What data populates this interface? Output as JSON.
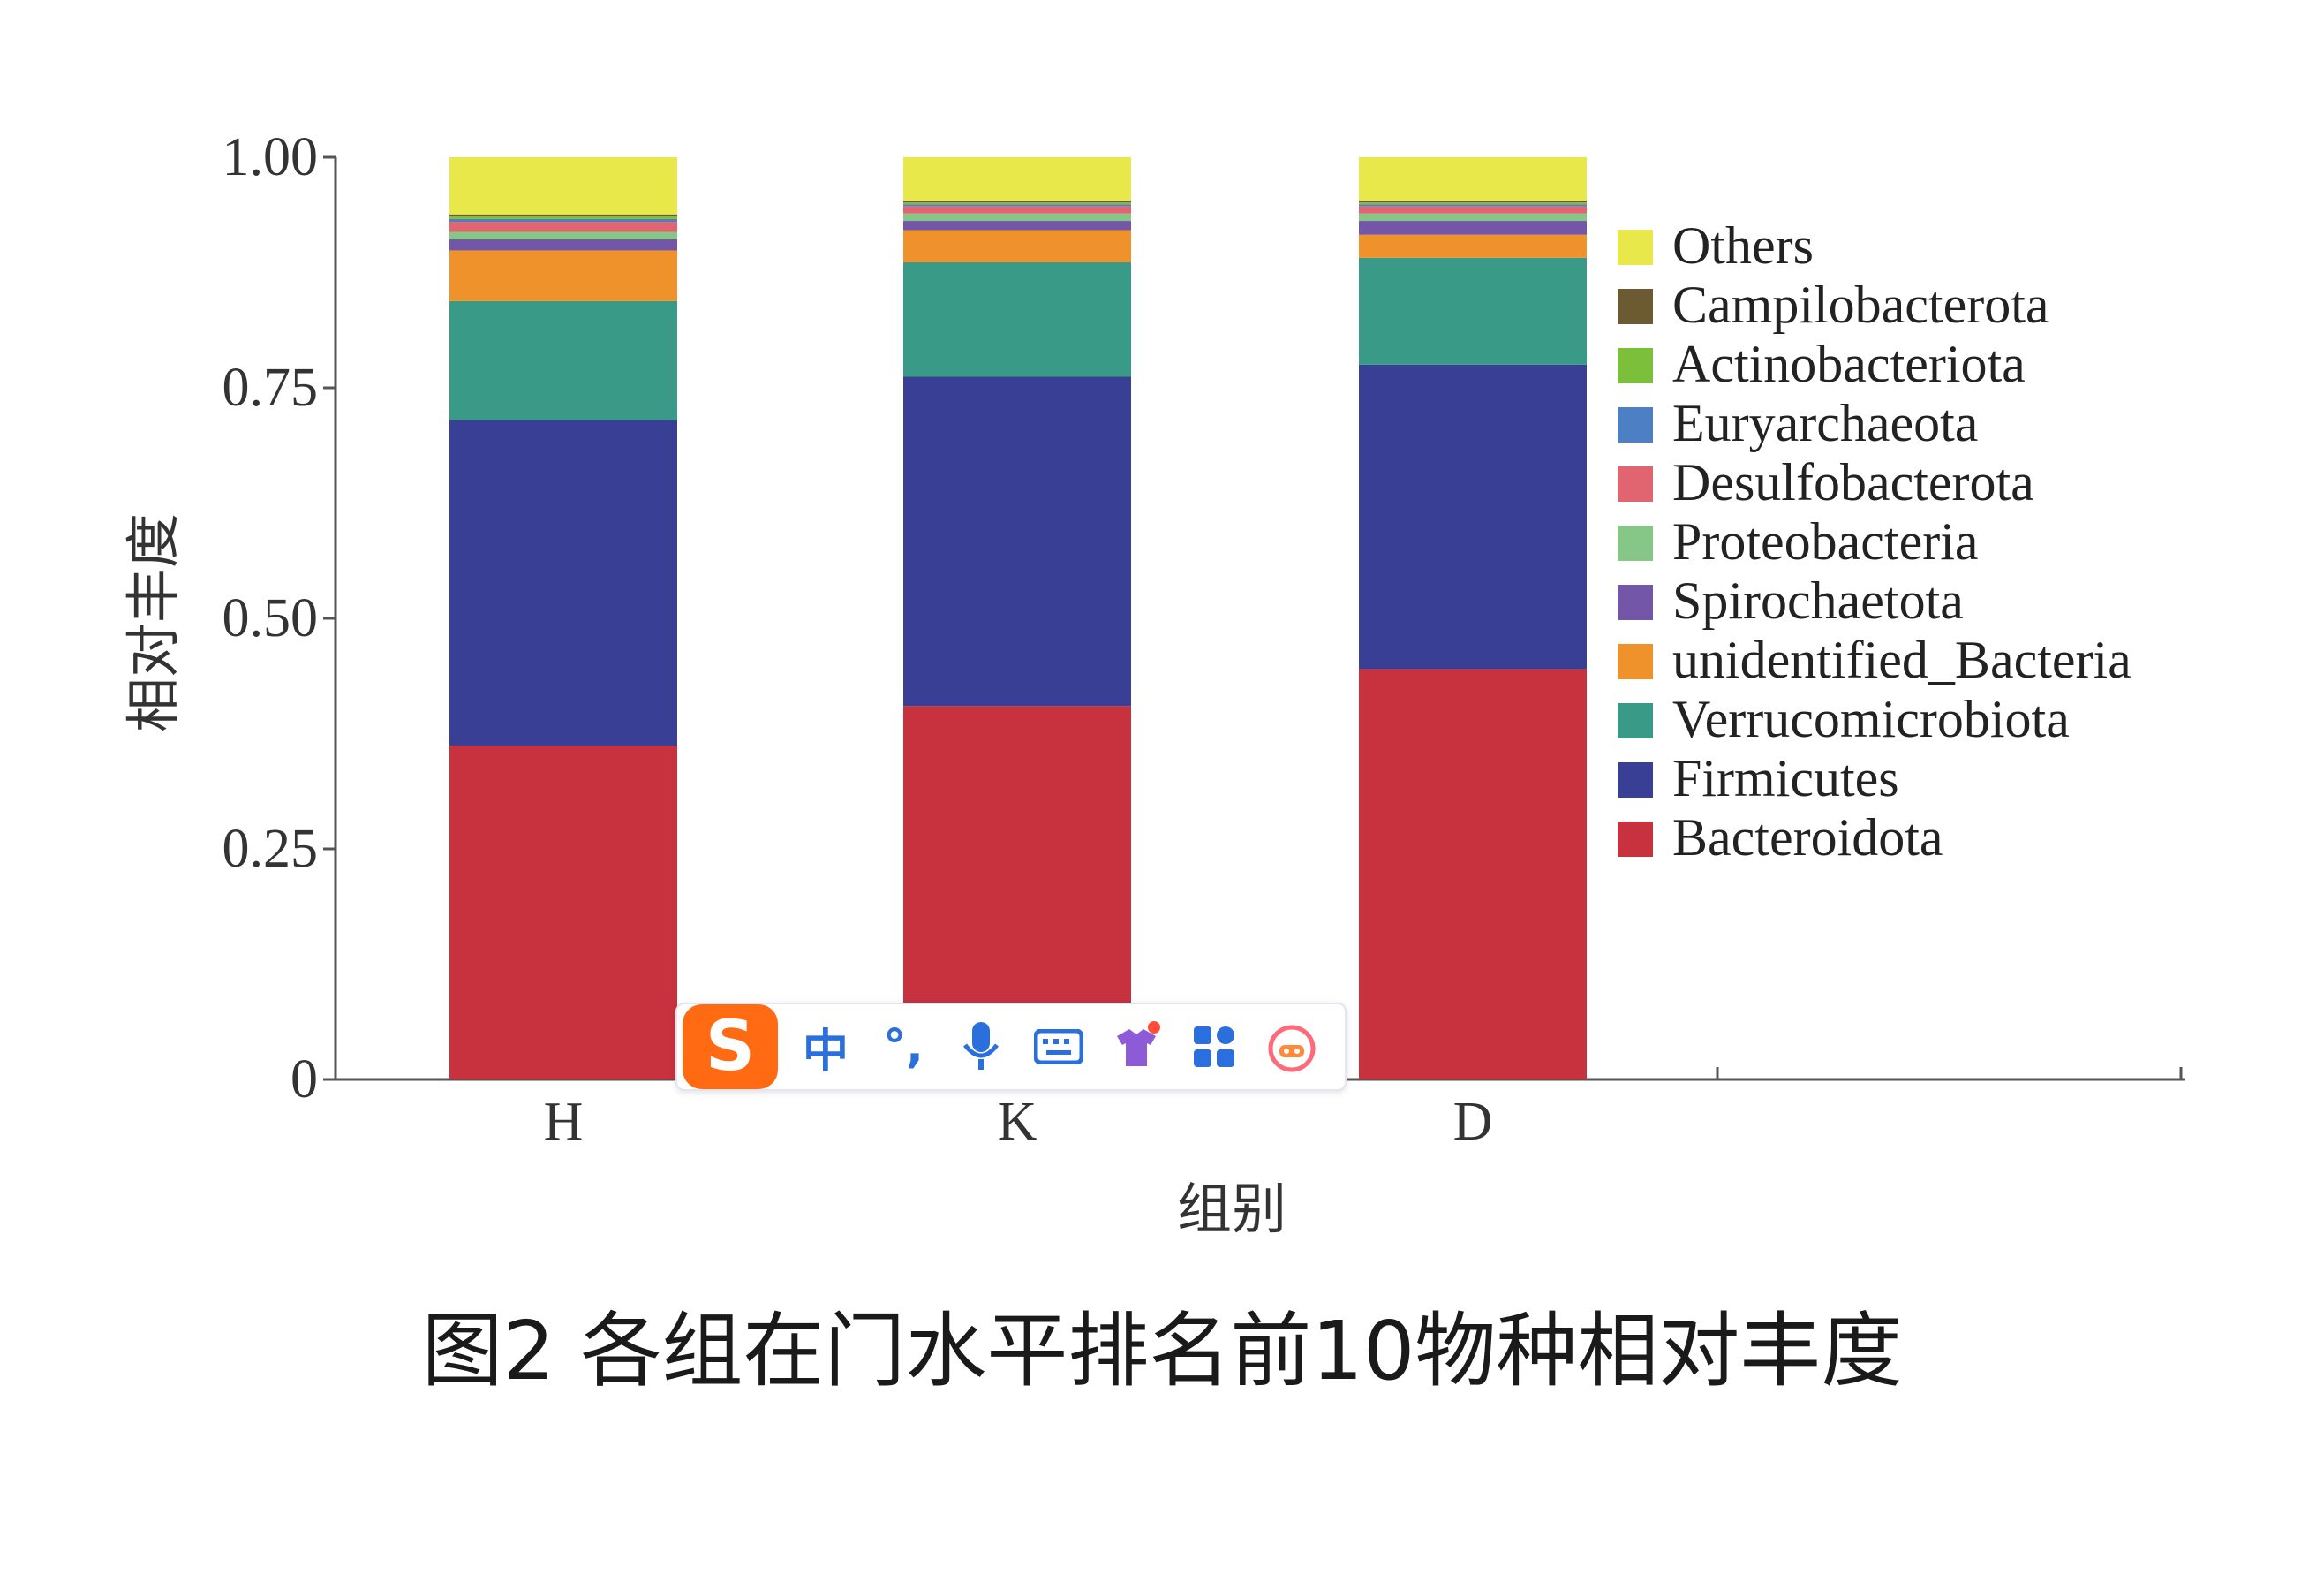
{
  "chart_data": {
    "type": "bar",
    "stacked": true,
    "categories": [
      "H",
      "K",
      "D"
    ],
    "xlabel": "组别",
    "ylabel": "相对丰度",
    "ylim": [
      0,
      1
    ],
    "yticks": [
      0,
      0.25,
      0.5,
      0.75,
      1.0
    ],
    "ytick_labels": [
      "0",
      "0.25",
      "0.50",
      "0.75",
      "1.00"
    ],
    "grid": false,
    "legend_position": "right",
    "series": [
      {
        "name": "Bacteroidota",
        "color": "#c8323f",
        "values": [
          0.362,
          0.405,
          0.445
        ]
      },
      {
        "name": "Firmicutes",
        "color": "#3a3f96",
        "values": [
          0.353,
          0.357,
          0.33
        ]
      },
      {
        "name": "Verrucomicrobiota",
        "color": "#3a9a88",
        "values": [
          0.129,
          0.124,
          0.116
        ]
      },
      {
        "name": "unidentified_Bacteria",
        "color": "#f0922c",
        "values": [
          0.055,
          0.035,
          0.025
        ]
      },
      {
        "name": "Spirochaetota",
        "color": "#7356a8",
        "values": [
          0.012,
          0.01,
          0.015
        ]
      },
      {
        "name": "Proteobacteria",
        "color": "#86c686",
        "values": [
          0.008,
          0.008,
          0.008
        ]
      },
      {
        "name": "Desulfobacterota",
        "color": "#e06570",
        "values": [
          0.011,
          0.008,
          0.008
        ]
      },
      {
        "name": "Euryarchaeota",
        "color": "#4d7fc4",
        "values": [
          0.003,
          0.002,
          0.002
        ]
      },
      {
        "name": "Actinobacteriota",
        "color": "#7bbf3a",
        "values": [
          0.003,
          0.002,
          0.002
        ]
      },
      {
        "name": "Campilobacterota",
        "color": "#6b5a32",
        "values": [
          0.002,
          0.002,
          0.002
        ]
      },
      {
        "name": "Others",
        "color": "#e8e84a",
        "values": [
          0.062,
          0.047,
          0.047
        ]
      }
    ]
  },
  "caption": "图2 各组在门水平排名前10物种相对丰度",
  "ime_toolbar": {
    "logo": "S",
    "lang": "中",
    "punct": "°,",
    "icons": [
      "mic-icon",
      "keyboard-icon",
      "skin-icon",
      "apps-icon",
      "mascot-icon"
    ]
  }
}
